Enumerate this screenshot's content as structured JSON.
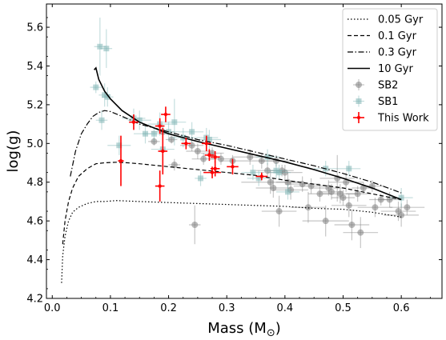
{
  "chart_data": {
    "type": "scatter",
    "xlabel": "Mass (M",
    "xlabel_sub": "⊙",
    "xlabel_close": ")",
    "ylabel": "log(g)",
    "xlim": [
      -0.01,
      0.67
    ],
    "ylim": [
      4.2,
      5.72
    ],
    "xticks": [
      "0.0",
      "0.1",
      "0.2",
      "0.3",
      "0.4",
      "0.5",
      "0.6"
    ],
    "xtick_values": [
      0.0,
      0.1,
      0.2,
      0.3,
      0.4,
      0.5,
      0.6
    ],
    "yticks": [
      "4.2",
      "4.4",
      "4.6",
      "4.8",
      "5.0",
      "5.2",
      "5.4",
      "5.6"
    ],
    "ytick_values": [
      4.2,
      4.4,
      4.6,
      4.8,
      5.0,
      5.2,
      5.4,
      5.6
    ],
    "grid": false,
    "legend_position": "top-right",
    "lines": [
      {
        "name": "0.05 Gyr",
        "style": "dotted",
        "color": "#000000",
        "x": [
          0.016,
          0.018,
          0.022,
          0.028,
          0.035,
          0.045,
          0.06,
          0.075,
          0.09,
          0.11,
          0.15,
          0.2,
          0.25,
          0.3,
          0.35,
          0.4,
          0.45,
          0.5,
          0.55,
          0.6
        ],
        "y": [
          4.28,
          4.42,
          4.52,
          4.6,
          4.645,
          4.67,
          4.69,
          4.7,
          4.7,
          4.705,
          4.7,
          4.695,
          4.69,
          4.685,
          4.68,
          4.675,
          4.665,
          4.66,
          4.645,
          4.62
        ]
      },
      {
        "name": "0.1 Gyr",
        "style": "dashed",
        "color": "#000000",
        "x": [
          0.018,
          0.022,
          0.028,
          0.035,
          0.045,
          0.06,
          0.075,
          0.09,
          0.11,
          0.13,
          0.15,
          0.2,
          0.25,
          0.3,
          0.35,
          0.4,
          0.45,
          0.5,
          0.55,
          0.6
        ],
        "y": [
          4.48,
          4.6,
          4.7,
          4.77,
          4.83,
          4.87,
          4.895,
          4.9,
          4.903,
          4.9,
          4.895,
          4.88,
          4.865,
          4.85,
          4.835,
          4.81,
          4.79,
          4.77,
          4.74,
          4.71
        ]
      },
      {
        "name": "0.3 Gyr",
        "style": "dashdot",
        "color": "#000000",
        "x": [
          0.031,
          0.04,
          0.05,
          0.06,
          0.07,
          0.08,
          0.09,
          0.1,
          0.12,
          0.15,
          0.2,
          0.25,
          0.3,
          0.35,
          0.4,
          0.45,
          0.5,
          0.55,
          0.6
        ],
        "y": [
          4.83,
          4.96,
          5.05,
          5.1,
          5.14,
          5.16,
          5.17,
          5.165,
          5.14,
          5.1,
          5.06,
          5.02,
          4.99,
          4.955,
          4.92,
          4.885,
          4.845,
          4.8,
          4.745
        ]
      },
      {
        "name": "10 Gyr",
        "style": "solid",
        "color": "#000000",
        "x": [
          0.072,
          0.075,
          0.08,
          0.09,
          0.1,
          0.12,
          0.15,
          0.2,
          0.25,
          0.3,
          0.35,
          0.4,
          0.45,
          0.5,
          0.55,
          0.6
        ],
        "y": [
          5.38,
          5.39,
          5.33,
          5.27,
          5.23,
          5.17,
          5.11,
          5.05,
          5.01,
          4.975,
          4.94,
          4.905,
          4.865,
          4.82,
          4.77,
          4.71
        ]
      }
    ],
    "scatter_series": [
      {
        "name": "SB2",
        "marker": "circle",
        "color": "#808080",
        "points": [
          [
            0.175,
            5.01,
            0.01,
            0.02
          ],
          [
            0.19,
            5.06,
            0.02,
            0.03
          ],
          [
            0.205,
            5.02,
            0.01,
            0.02
          ],
          [
            0.21,
            4.89,
            0.01,
            0.03
          ],
          [
            0.24,
            4.99,
            0.02,
            0.03
          ],
          [
            0.245,
            4.58,
            0.01,
            0.1
          ],
          [
            0.25,
            4.96,
            0.02,
            0.04
          ],
          [
            0.26,
            4.92,
            0.02,
            0.03
          ],
          [
            0.275,
            4.95,
            0.02,
            0.03
          ],
          [
            0.29,
            4.92,
            0.02,
            0.03
          ],
          [
            0.31,
            4.91,
            0.02,
            0.03
          ],
          [
            0.34,
            4.93,
            0.03,
            0.04
          ],
          [
            0.36,
            4.91,
            0.03,
            0.04
          ],
          [
            0.37,
            4.86,
            0.02,
            0.04
          ],
          [
            0.375,
            4.8,
            0.05,
            0.06
          ],
          [
            0.38,
            4.77,
            0.03,
            0.05
          ],
          [
            0.385,
            4.91,
            0.03,
            0.03
          ],
          [
            0.39,
            4.65,
            0.03,
            0.08
          ],
          [
            0.395,
            4.86,
            0.02,
            0.03
          ],
          [
            0.4,
            4.85,
            0.03,
            0.04
          ],
          [
            0.405,
            4.8,
            0.02,
            0.05
          ],
          [
            0.41,
            4.76,
            0.03,
            0.05
          ],
          [
            0.43,
            4.79,
            0.03,
            0.04
          ],
          [
            0.44,
            4.67,
            0.03,
            0.08
          ],
          [
            0.445,
            4.78,
            0.03,
            0.04
          ],
          [
            0.46,
            4.74,
            0.02,
            0.04
          ],
          [
            0.47,
            4.6,
            0.04,
            0.08
          ],
          [
            0.475,
            4.77,
            0.03,
            0.04
          ],
          [
            0.48,
            4.75,
            0.02,
            0.04
          ],
          [
            0.49,
            4.82,
            0.03,
            0.12
          ],
          [
            0.495,
            4.74,
            0.03,
            0.05
          ],
          [
            0.5,
            4.72,
            0.02,
            0.04
          ],
          [
            0.505,
            4.8,
            0.03,
            0.05
          ],
          [
            0.51,
            4.68,
            0.03,
            0.06
          ],
          [
            0.515,
            4.58,
            0.03,
            0.08
          ],
          [
            0.525,
            4.74,
            0.02,
            0.04
          ],
          [
            0.53,
            4.54,
            0.03,
            0.08
          ],
          [
            0.535,
            4.77,
            0.02,
            0.03
          ],
          [
            0.55,
            4.78,
            0.02,
            0.03
          ],
          [
            0.555,
            4.67,
            0.03,
            0.05
          ],
          [
            0.565,
            4.71,
            0.02,
            0.03
          ],
          [
            0.58,
            4.71,
            0.02,
            0.04
          ],
          [
            0.595,
            4.65,
            0.03,
            0.05
          ],
          [
            0.6,
            4.63,
            0.03,
            0.06
          ],
          [
            0.61,
            4.67,
            0.03,
            0.04
          ]
        ]
      },
      {
        "name": "SB1",
        "marker": "square",
        "color": "#7fb5b5",
        "points": [
          [
            0.075,
            5.29,
            0.01,
            0.03
          ],
          [
            0.082,
            5.5,
            0.01,
            0.15
          ],
          [
            0.085,
            5.12,
            0.01,
            0.05
          ],
          [
            0.09,
            5.25,
            0.01,
            0.06
          ],
          [
            0.093,
            5.49,
            0.01,
            0.1
          ],
          [
            0.095,
            5.24,
            0.01,
            0.05
          ],
          [
            0.115,
            4.99,
            0.02,
            0.05
          ],
          [
            0.14,
            5.13,
            0.02,
            0.05
          ],
          [
            0.15,
            5.12,
            0.02,
            0.05
          ],
          [
            0.16,
            5.05,
            0.02,
            0.05
          ],
          [
            0.175,
            5.05,
            0.02,
            0.04
          ],
          [
            0.185,
            5.1,
            0.02,
            0.06
          ],
          [
            0.19,
            4.97,
            0.02,
            0.05
          ],
          [
            0.2,
            5.06,
            0.02,
            0.05
          ],
          [
            0.21,
            5.11,
            0.02,
            0.12
          ],
          [
            0.225,
            5.03,
            0.02,
            0.05
          ],
          [
            0.24,
            5.06,
            0.02,
            0.05
          ],
          [
            0.255,
            4.82,
            0.01,
            0.04
          ],
          [
            0.265,
            5.03,
            0.02,
            0.05
          ],
          [
            0.27,
            5.02,
            0.02,
            0.05
          ],
          [
            0.345,
            4.85,
            0.02,
            0.04
          ],
          [
            0.355,
            4.82,
            0.02,
            0.04
          ],
          [
            0.37,
            4.93,
            0.02,
            0.04
          ],
          [
            0.385,
            4.86,
            0.02,
            0.04
          ],
          [
            0.39,
            4.85,
            0.02,
            0.04
          ],
          [
            0.405,
            4.75,
            0.02,
            0.04
          ],
          [
            0.47,
            4.87,
            0.02,
            0.04
          ],
          [
            0.51,
            4.87,
            0.02,
            0.04
          ],
          [
            0.6,
            4.72,
            0.02,
            0.05
          ]
        ]
      },
      {
        "name": "This Work",
        "marker": "point",
        "color": "#ff0000",
        "points": [
          [
            0.118,
            4.91,
            0.005,
            0.13
          ],
          [
            0.14,
            5.11,
            0.008,
            0.04
          ],
          [
            0.185,
            5.09,
            0.008,
            0.04
          ],
          [
            0.185,
            4.78,
            0.008,
            0.08
          ],
          [
            0.19,
            4.96,
            0.008,
            0.12
          ],
          [
            0.195,
            5.15,
            0.008,
            0.04
          ],
          [
            0.23,
            5.0,
            0.008,
            0.03
          ],
          [
            0.265,
            5.0,
            0.008,
            0.04
          ],
          [
            0.27,
            4.94,
            0.008,
            0.03
          ],
          [
            0.275,
            4.85,
            0.015,
            0.03
          ],
          [
            0.28,
            4.93,
            0.008,
            0.03
          ],
          [
            0.28,
            4.87,
            0.008,
            0.04
          ],
          [
            0.31,
            4.88,
            0.01,
            0.04
          ],
          [
            0.36,
            4.83,
            0.01,
            0.02
          ]
        ]
      }
    ],
    "legend": [
      {
        "label": "0.05 Gyr",
        "kind": "dotted"
      },
      {
        "label": "0.1 Gyr",
        "kind": "dashed"
      },
      {
        "label": "0.3 Gyr",
        "kind": "dashdot"
      },
      {
        "label": "10 Gyr",
        "kind": "solid"
      },
      {
        "label": "SB2",
        "kind": "SB2"
      },
      {
        "label": "SB1",
        "kind": "SB1"
      },
      {
        "label": "This Work",
        "kind": "ThisWork"
      }
    ]
  }
}
